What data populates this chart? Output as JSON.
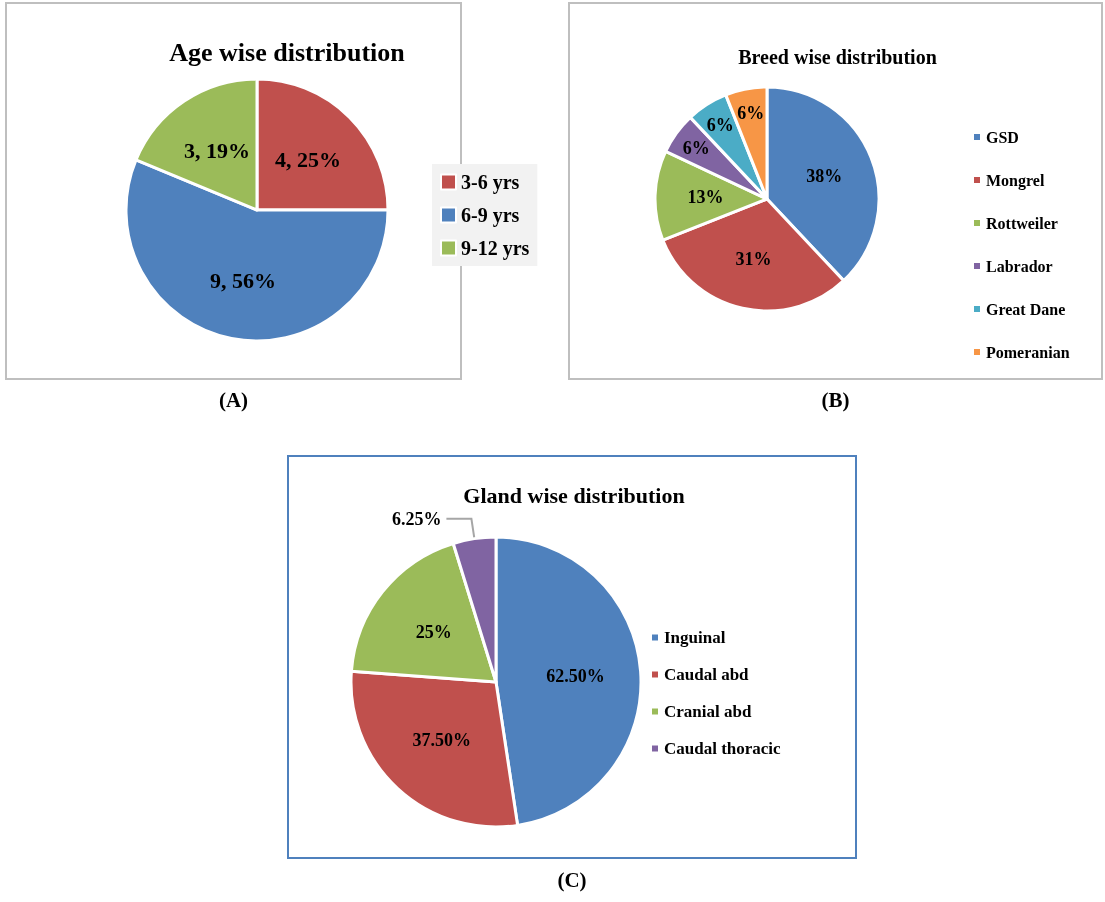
{
  "chart_data": [
    {
      "type": "pie",
      "title": "Age wise distribution",
      "categories": [
        "3-6 yrs",
        "6-9 yrs",
        "9-12 yrs"
      ],
      "values": [
        4,
        9,
        3
      ],
      "colors": [
        "#c0504d",
        "#4f81bd",
        "#9bbb59"
      ],
      "value_labels": [
        "4, 25%",
        "9, 56%",
        "3, 19%"
      ],
      "legend": "right",
      "annotations": [
        "(A)"
      ]
    },
    {
      "type": "pie",
      "title": "Breed wise distribution",
      "categories": [
        "GSD",
        "Mongrel",
        "Rottweiler",
        "Labrador",
        "Great Dane",
        "Pomeranian"
      ],
      "values": [
        38,
        31,
        13,
        6,
        6,
        6
      ],
      "colors": [
        "#4f81bd",
        "#c0504d",
        "#9bbb59",
        "#8064a2",
        "#4bacc6",
        "#f79646"
      ],
      "value_labels": [
        "38%",
        "31%",
        "13%",
        "6%",
        "6%",
        "6%"
      ],
      "legend": "right",
      "annotations": [
        "(B)"
      ]
    },
    {
      "type": "pie",
      "title": "Gland wise distribution",
      "categories": [
        "Inguinal",
        "Caudal abd",
        "Cranial abd",
        "Caudal thoracic"
      ],
      "values": [
        62.5,
        37.5,
        25,
        6.25
      ],
      "colors": [
        "#4f81bd",
        "#c0504d",
        "#9bbb59",
        "#8064a2"
      ],
      "value_labels": [
        "62.50%",
        "37.50%",
        "25%",
        "6.25%"
      ],
      "legend": "right",
      "annotations": [
        "(C)"
      ]
    }
  ]
}
